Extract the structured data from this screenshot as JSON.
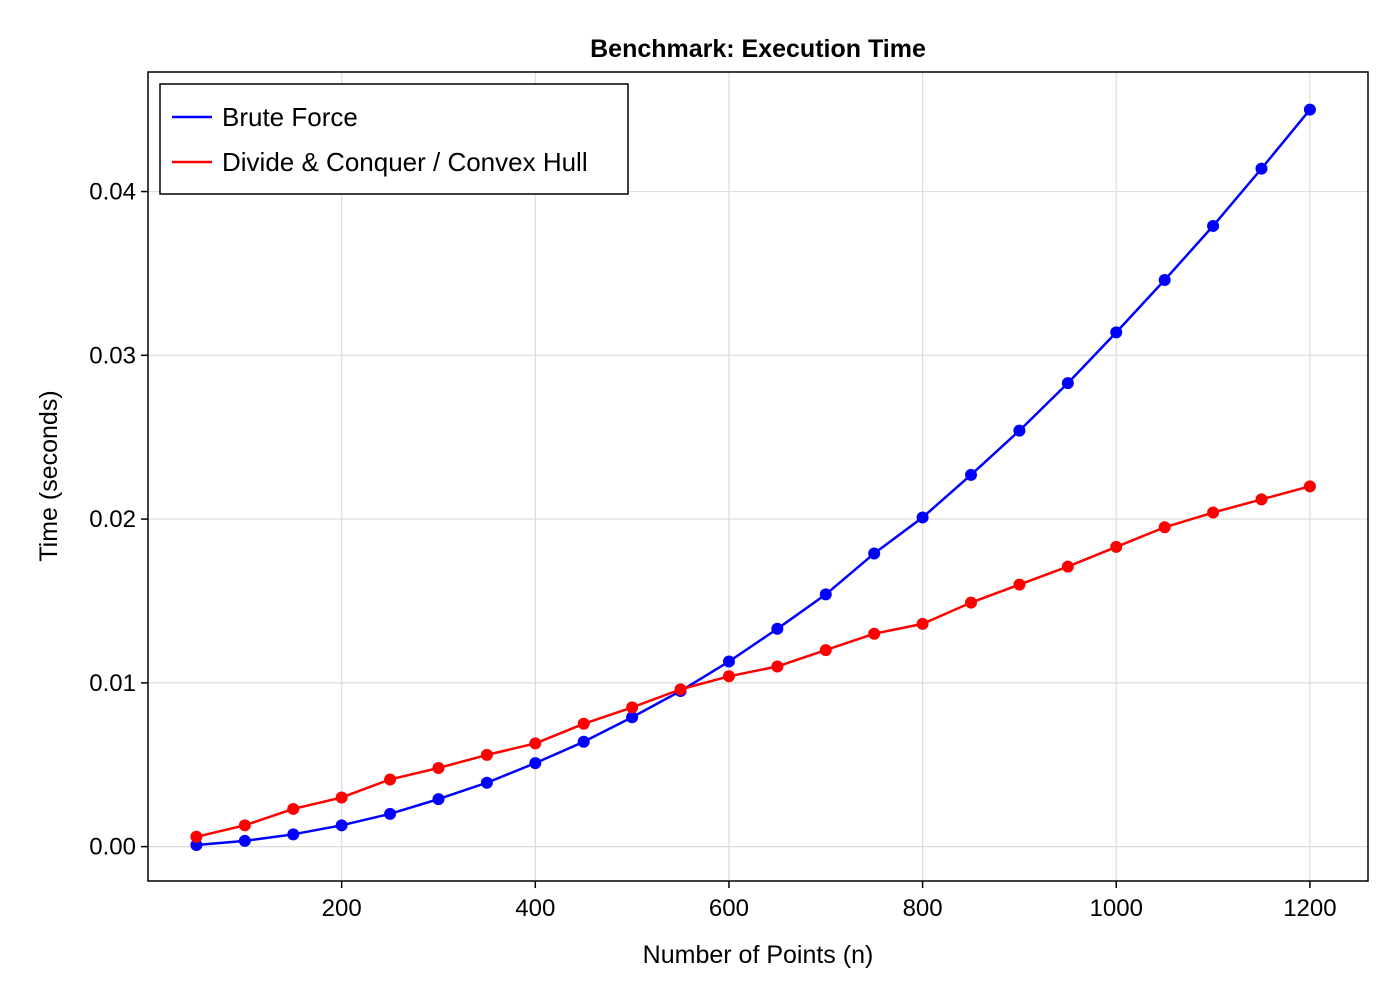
{
  "chart_data": {
    "type": "line",
    "title": "Benchmark: Execution Time",
    "xlabel": "Number of Points (n)",
    "ylabel": "Time (seconds)",
    "xlim": [
      0,
      1260
    ],
    "ylim": [
      -0.0021,
      0.0473
    ],
    "xticks": [
      200,
      400,
      600,
      800,
      1000,
      1200
    ],
    "xtick_labels": [
      "200",
      "400",
      "600",
      "800",
      "1000",
      "1200"
    ],
    "yticks": [
      0.0,
      0.01,
      0.02,
      0.03,
      0.04
    ],
    "ytick_labels": [
      "0.00",
      "0.01",
      "0.02",
      "0.03",
      "0.04"
    ],
    "grid": true,
    "legend_position": "top-left",
    "x": [
      50,
      100,
      150,
      200,
      250,
      300,
      350,
      400,
      450,
      500,
      550,
      600,
      650,
      700,
      750,
      800,
      850,
      900,
      950,
      1000,
      1050,
      1100,
      1150,
      1200
    ],
    "series": [
      {
        "name": "Brute Force",
        "color": "#0000ff",
        "values": [
          0.0001,
          0.00035,
          0.00075,
          0.0013,
          0.002,
          0.0029,
          0.0039,
          0.0051,
          0.0064,
          0.0079,
          0.0095,
          0.0113,
          0.0133,
          0.0154,
          0.0179,
          0.0201,
          0.0227,
          0.0254,
          0.0283,
          0.0314,
          0.0346,
          0.0379,
          0.0414,
          0.045
        ]
      },
      {
        "name": "Divide & Conquer / Convex Hull",
        "color": "#ff0000",
        "values": [
          0.0006,
          0.0013,
          0.0023,
          0.003,
          0.0041,
          0.0048,
          0.0056,
          0.0063,
          0.0075,
          0.0085,
          0.0096,
          0.0104,
          0.011,
          0.012,
          0.013,
          0.0136,
          0.0149,
          0.016,
          0.0171,
          0.0183,
          0.0195,
          0.0204,
          0.0212,
          0.022
        ]
      }
    ]
  }
}
